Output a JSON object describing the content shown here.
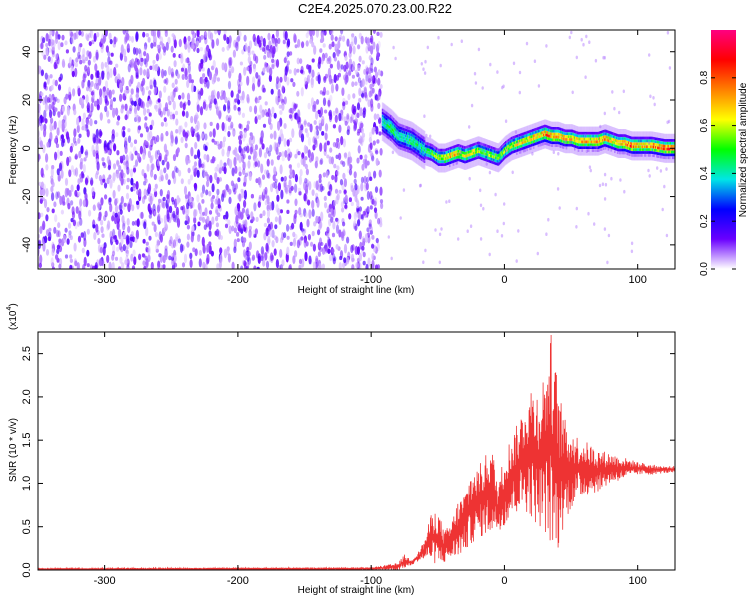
{
  "figure": {
    "title": "C2E4.2025.070.23.00.R22"
  },
  "chart_data": [
    {
      "type": "heatmap",
      "title": "",
      "xlabel": "Height of straight line (km)",
      "ylabel": "Frequency (Hz)",
      "xlim": [
        -350,
        128
      ],
      "ylim": [
        -50,
        49
      ],
      "xticks": [
        -300,
        -200,
        -100,
        0,
        100
      ],
      "yticks": [
        -40,
        -20,
        0,
        20,
        40
      ],
      "grid": false,
      "colorbar": {
        "label": "Normalized spectral amplitude",
        "range": [
          0,
          1
        ],
        "ticks": [
          0.0,
          0.2,
          0.4,
          0.6,
          0.8
        ],
        "colormap": [
          "#ffffff",
          "#6a00ff",
          "#0000ff",
          "#00e6e6",
          "#00ff00",
          "#ffff00",
          "#ff8000",
          "#ff0000",
          "#ff0080"
        ]
      },
      "noise_region_x": [
        -350,
        -92
      ],
      "ridge": {
        "x": [
          -92,
          -85,
          -80,
          -75,
          -70,
          -65,
          -60,
          -55,
          -50,
          -45,
          -40,
          -35,
          -30,
          -25,
          -20,
          -15,
          -10,
          -5,
          0,
          5,
          10,
          15,
          20,
          25,
          30,
          35,
          40,
          45,
          50,
          55,
          60,
          65,
          70,
          75,
          80,
          85,
          90,
          95,
          100,
          110,
          120,
          128
        ],
        "freq": [
          11,
          8,
          5,
          4,
          3,
          1,
          -1,
          -2,
          -4,
          -4,
          -3,
          -2,
          -3,
          -2,
          -1,
          -2,
          -3,
          -4,
          -1,
          1,
          2,
          3,
          4,
          5,
          6,
          5,
          5,
          4,
          4,
          3,
          3,
          3,
          3,
          4,
          3,
          2,
          2,
          1,
          1,
          1,
          0,
          0
        ],
        "amp": [
          0.45,
          0.5,
          0.45,
          0.45,
          0.5,
          0.45,
          0.5,
          0.55,
          0.6,
          0.65,
          0.75,
          0.7,
          0.65,
          0.7,
          0.6,
          0.55,
          0.6,
          0.55,
          0.6,
          0.65,
          0.7,
          0.7,
          0.75,
          0.75,
          0.8,
          0.8,
          0.8,
          0.75,
          0.75,
          0.7,
          0.8,
          0.75,
          0.8,
          0.75,
          0.75,
          0.7,
          0.8,
          0.85,
          0.75,
          0.8,
          0.85,
          0.85
        ]
      }
    },
    {
      "type": "line",
      "title": "",
      "xlabel": "Height of straight line (km)",
      "ylabel": "SNR (10 * v/v)",
      "multiplier_label": "(x10",
      "multiplier_exp": "4",
      "multiplier_close": ")",
      "xlim": [
        -350,
        128
      ],
      "ylim": [
        0,
        2.75
      ],
      "xticks": [
        -300,
        -200,
        -100,
        0,
        100
      ],
      "yticks": [
        "0.0",
        "0.5",
        "1.0",
        "1.5",
        "2.0",
        "2.5"
      ],
      "ytick_values": [
        0,
        0.5,
        1.0,
        1.5,
        2.0,
        2.5
      ],
      "grid": false,
      "color": "#ee3333",
      "envelope": {
        "x": [
          -350,
          -100,
          -80,
          -75,
          -70,
          -65,
          -60,
          -55,
          -50,
          -45,
          -40,
          -35,
          -30,
          -25,
          -20,
          -15,
          -10,
          -5,
          0,
          5,
          10,
          15,
          20,
          25,
          30,
          35,
          40,
          45,
          50,
          55,
          60,
          70,
          80,
          90,
          100,
          110,
          120,
          128
        ],
        "low": [
          0.0,
          0.0,
          0.0,
          0.02,
          0.05,
          0.1,
          0.12,
          0.1,
          0.05,
          0.08,
          0.12,
          0.15,
          0.2,
          0.3,
          0.35,
          0.4,
          0.4,
          0.45,
          0.5,
          0.6,
          0.65,
          0.7,
          0.6,
          0.5,
          0.45,
          0.25,
          0.2,
          0.55,
          0.7,
          0.8,
          0.85,
          0.9,
          1.0,
          1.05,
          1.1,
          1.1,
          1.12,
          1.12
        ],
        "high": [
          0.02,
          0.03,
          0.08,
          0.18,
          0.12,
          0.2,
          0.35,
          0.65,
          0.7,
          0.45,
          0.55,
          0.8,
          0.9,
          1.15,
          1.2,
          1.3,
          1.5,
          1.0,
          1.35,
          1.55,
          1.7,
          1.95,
          2.15,
          2.1,
          2.3,
          2.75,
          2.2,
          1.75,
          1.65,
          1.55,
          1.5,
          1.4,
          1.35,
          1.3,
          1.25,
          1.22,
          1.2,
          1.2
        ]
      }
    }
  ]
}
